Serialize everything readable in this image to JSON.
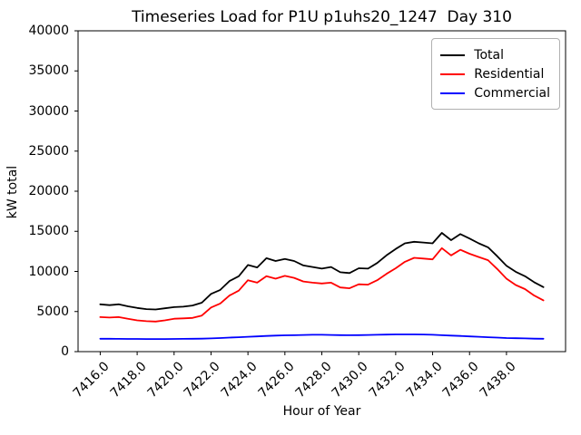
{
  "chart_data": {
    "type": "line",
    "title": "Timeseries Load for P1U p1uhs20_1247  Day 310",
    "xlabel": "Hour of Year",
    "ylabel": "kW total",
    "xlim": [
      7414.8,
      7441.2
    ],
    "ylim": [
      0,
      40000
    ],
    "grid": false,
    "legend_position": "upper right",
    "xticks": [
      7416,
      7418,
      7420,
      7422,
      7424,
      7426,
      7428,
      7430,
      7432,
      7434,
      7436,
      7438
    ],
    "xtick_labels": [
      "7416.0",
      "7418.0",
      "7420.0",
      "7422.0",
      "7424.0",
      "7426.0",
      "7428.0",
      "7430.0",
      "7432.0",
      "7434.0",
      "7436.0",
      "7438.0"
    ],
    "yticks": [
      0,
      5000,
      10000,
      15000,
      20000,
      25000,
      30000,
      35000,
      40000
    ],
    "ytick_labels": [
      "0",
      "5000",
      "10000",
      "15000",
      "20000",
      "25000",
      "30000",
      "35000",
      "40000"
    ],
    "x": [
      7416,
      7416.5,
      7417,
      7417.5,
      7418,
      7418.5,
      7419,
      7419.5,
      7420,
      7420.5,
      7421,
      7421.5,
      7422,
      7422.5,
      7423,
      7423.5,
      7424,
      7424.5,
      7425,
      7425.5,
      7426,
      7426.5,
      7427,
      7427.5,
      7428,
      7428.5,
      7429,
      7429.5,
      7430,
      7430.5,
      7431,
      7431.5,
      7432,
      7432.5,
      7433,
      7433.5,
      7434,
      7434.5,
      7435,
      7435.5,
      7436,
      7436.5,
      7437,
      7437.5,
      7438,
      7438.5,
      7439,
      7439.5,
      7440
    ],
    "series": [
      {
        "name": "Total",
        "color": "#000000",
        "values": [
          5900,
          5800,
          5900,
          5650,
          5450,
          5300,
          5250,
          5400,
          5550,
          5600,
          5750,
          6100,
          7200,
          7700,
          8800,
          9400,
          10800,
          10500,
          11650,
          11300,
          11550,
          11300,
          10750,
          10550,
          10350,
          10550,
          9900,
          9800,
          10400,
          10350,
          11050,
          12000,
          12800,
          13500,
          13700,
          13600,
          13500,
          14800,
          13900,
          14650,
          14100,
          13500,
          13000,
          11900,
          10700,
          9950,
          9400,
          8650,
          8050
        ]
      },
      {
        "name": "Residential",
        "color": "#ff0000",
        "values": [
          4300,
          4250,
          4300,
          4100,
          3900,
          3800,
          3750,
          3900,
          4100,
          4150,
          4200,
          4500,
          5500,
          6000,
          7000,
          7600,
          8900,
          8600,
          9400,
          9100,
          9450,
          9200,
          8750,
          8600,
          8500,
          8600,
          8000,
          7900,
          8400,
          8350,
          8900,
          9700,
          10400,
          11200,
          11700,
          11600,
          11500,
          12900,
          12000,
          12700,
          12200,
          11800,
          11400,
          10300,
          9100,
          8300,
          7800,
          7000,
          6400
        ]
      },
      {
        "name": "Commercial",
        "color": "#0000ff",
        "values": [
          1600,
          1600,
          1590,
          1580,
          1580,
          1570,
          1570,
          1570,
          1580,
          1590,
          1600,
          1620,
          1650,
          1700,
          1750,
          1800,
          1850,
          1900,
          1950,
          2000,
          2030,
          2050,
          2080,
          2100,
          2100,
          2080,
          2060,
          2050,
          2060,
          2080,
          2100,
          2120,
          2150,
          2150,
          2150,
          2130,
          2100,
          2050,
          2000,
          1950,
          1900,
          1850,
          1800,
          1750,
          1700,
          1670,
          1650,
          1620,
          1600
        ]
      }
    ]
  }
}
